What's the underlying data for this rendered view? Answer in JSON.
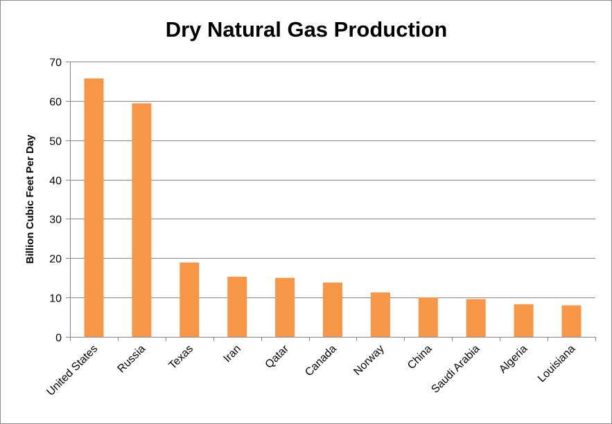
{
  "chart_data": {
    "type": "bar",
    "title": "Dry Natural Gas Production",
    "xlabel": "",
    "ylabel": "Billion Cubic Feet Per Day",
    "ylim": [
      0,
      70
    ],
    "yticks": [
      0,
      10,
      20,
      30,
      40,
      50,
      60,
      70
    ],
    "grid": true,
    "legend": "none",
    "categories": [
      "United States",
      "Russia",
      "Texas",
      "Iran",
      "Qatar",
      "Canada",
      "Norway",
      "China",
      "Saudi Arabia",
      "Algeria",
      "Louisiana"
    ],
    "values": [
      65.7,
      59.4,
      18.9,
      15.3,
      15.0,
      13.8,
      11.3,
      10.0,
      9.6,
      8.3,
      8.0
    ],
    "bar_color": "#F79646",
    "grid_color": "#868686"
  }
}
